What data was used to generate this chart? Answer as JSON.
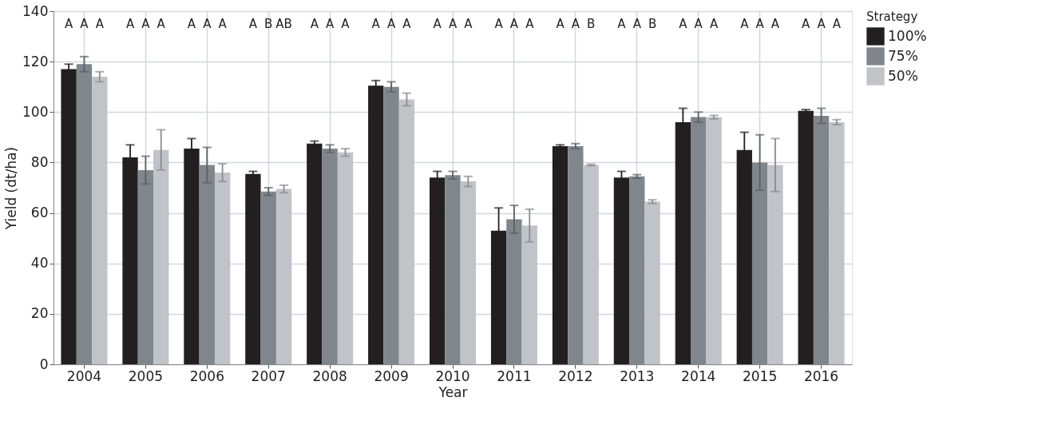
{
  "chart_data": {
    "type": "bar",
    "xlabel": "Year",
    "ylabel": "Yield (dt/ha)",
    "legend_title": "Strategy",
    "categories": [
      "2004",
      "2005",
      "2006",
      "2007",
      "2008",
      "2009",
      "2010",
      "2011",
      "2012",
      "2013",
      "2014",
      "2015",
      "2016"
    ],
    "series": [
      {
        "name": "100%",
        "color": "#231f20",
        "values": [
          117,
          82,
          85.5,
          75.5,
          87.5,
          110.5,
          74,
          53,
          86.5,
          74,
          96,
          85,
          100.5
        ],
        "errors": [
          2,
          5,
          4,
          1,
          1,
          2,
          2.5,
          9,
          0.5,
          2.5,
          5.5,
          7,
          0.5
        ]
      },
      {
        "name": "75%",
        "color": "#7f868c",
        "values": [
          119,
          77,
          79,
          68.5,
          85.5,
          110,
          75,
          57.5,
          86.5,
          74.5,
          98,
          80,
          98.5
        ],
        "errors": [
          3,
          5.5,
          7,
          1.5,
          1.5,
          2,
          1.5,
          5.5,
          1,
          0.7,
          2,
          11,
          3
        ]
      },
      {
        "name": "50%",
        "color": "#c0c3c8",
        "values": [
          114,
          85,
          76,
          69.5,
          84,
          105,
          72.5,
          55,
          79,
          64.5,
          98,
          79,
          96
        ],
        "errors": [
          2,
          8,
          3.5,
          1.5,
          1.5,
          2.5,
          2,
          6.5,
          0.3,
          0.7,
          0.7,
          10.5,
          1
        ]
      }
    ],
    "ylim": [
      0,
      140
    ],
    "yticks": [
      0,
      20,
      40,
      60,
      80,
      100,
      120,
      140
    ],
    "grid": true,
    "legend": "top right",
    "annotations": [
      "A",
      "A",
      "A",
      "A",
      "A",
      "A",
      "A",
      "A",
      "A",
      "A",
      "B",
      "AB",
      "A",
      "A",
      "A",
      "A",
      "A",
      "A",
      "A",
      "A",
      "A",
      "A",
      "A",
      "A",
      "A",
      "A",
      "B",
      "A",
      "A",
      "B",
      "A",
      "A",
      "A",
      "A",
      "A",
      "A",
      "A",
      "A",
      "A"
    ]
  }
}
